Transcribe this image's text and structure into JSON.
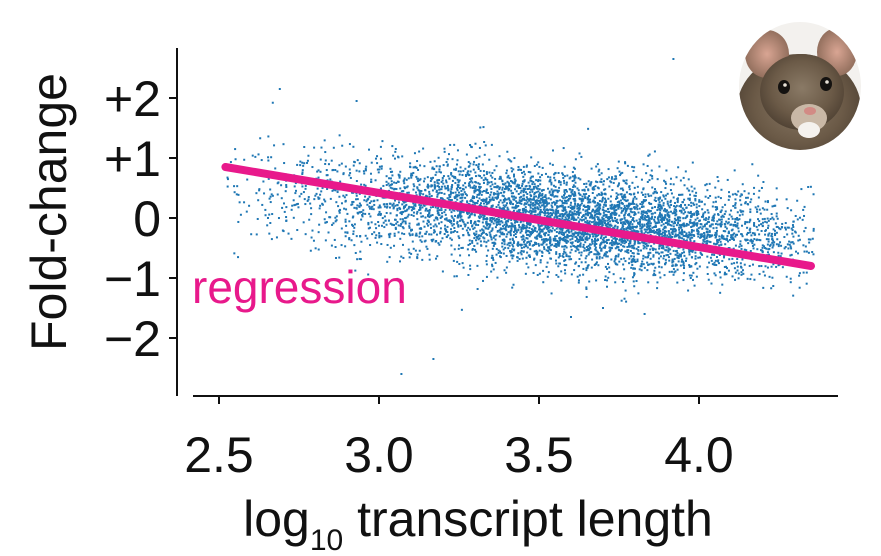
{
  "chart_data": {
    "type": "scatter",
    "title": "",
    "xlabel_main": "log",
    "xlabel_sub": "10",
    "xlabel_rest": " transcript length",
    "ylabel": "Fold-change",
    "xlim": [
      2.5,
      4.4
    ],
    "ylim": [
      -2.9,
      2.8
    ],
    "x_ticks": [
      2.5,
      3.0,
      3.5,
      4.0
    ],
    "x_tick_labels": [
      "2.5",
      "3.0",
      "3.5",
      "4.0"
    ],
    "y_ticks": [
      2,
      1,
      0,
      -1,
      -2
    ],
    "y_tick_labels": [
      "+2",
      "+1",
      "0",
      "−1",
      "−2"
    ],
    "grid": false,
    "point_color": "#1f77b4",
    "regression": {
      "label": "regression",
      "color": "#e8198b",
      "x": [
        2.52,
        4.35
      ],
      "y": [
        0.85,
        -0.8
      ]
    },
    "clouds": [
      {
        "x_center": 3.5,
        "y_center": 0.05,
        "x_spread": 0.42,
        "y_spread": 0.42,
        "slope": -0.9,
        "count": 3800
      },
      {
        "x_center": 3.75,
        "y_center": -0.2,
        "x_spread": 0.3,
        "y_spread": 0.35,
        "slope": -0.9,
        "count": 1600
      }
    ],
    "outliers": [
      {
        "x": 2.69,
        "y": 2.15
      },
      {
        "x": 3.07,
        "y": -2.6
      },
      {
        "x": 3.17,
        "y": -2.35
      },
      {
        "x": 3.92,
        "y": 2.65
      },
      {
        "x": 2.93,
        "y": 1.95
      },
      {
        "x": 3.83,
        "y": -1.6
      },
      {
        "x": 3.7,
        "y": -1.5
      },
      {
        "x": 3.6,
        "y": -1.65
      }
    ],
    "inset_image": "mouse-photo"
  }
}
